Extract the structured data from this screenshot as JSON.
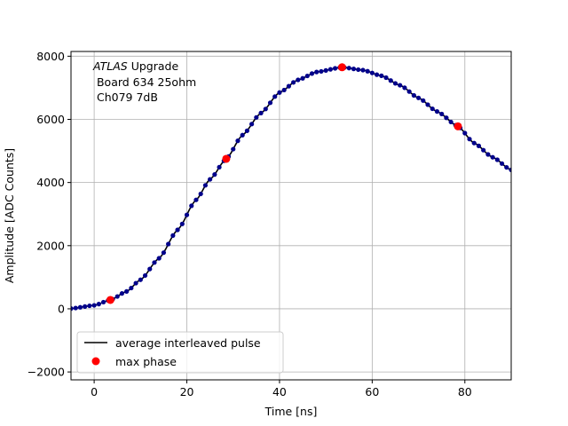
{
  "chart_data": {
    "type": "line",
    "xlabel": "Time [ns]",
    "ylabel": "Amplitude [ADC Counts]",
    "xlim": [
      -5,
      90
    ],
    "ylim": [
      -2250,
      8150
    ],
    "xticks": [
      "0",
      "20",
      "40",
      "60",
      "80"
    ],
    "xtick_values": [
      0,
      20,
      40,
      60,
      80
    ],
    "yticks": [
      "−2000",
      "0",
      "2000",
      "4000",
      "6000",
      "8000"
    ],
    "ytick_values": [
      -2000,
      0,
      2000,
      4000,
      6000,
      8000
    ],
    "grid": true,
    "legend_position": "lower-left",
    "annotation": {
      "experiment": "ATLAS",
      "experiment_suffix": " Upgrade",
      "line2": " Board 634 25ohm",
      "line3": " Ch079 7dB"
    },
    "series": [
      {
        "name": "average interleaved pulse",
        "style": "line",
        "color": "#000000",
        "x": [
          -5,
          0,
          3.5,
          7,
          10,
          14,
          18,
          22,
          25,
          28.5,
          32,
          36,
          40,
          44,
          48,
          53.5,
          58,
          62,
          66,
          70,
          74,
          78.5,
          82,
          86,
          90
        ],
        "y": [
          10,
          110,
          280,
          550,
          920,
          1600,
          2500,
          3450,
          4100,
          4750,
          5500,
          6200,
          6850,
          7250,
          7500,
          7650,
          7560,
          7380,
          7080,
          6680,
          6250,
          5780,
          5250,
          4800,
          4400
        ]
      },
      {
        "name": "samples",
        "style": "dots",
        "color": "#00008b",
        "x": [
          -5,
          0,
          3.5,
          7,
          10,
          14,
          18,
          22,
          25,
          28.5,
          32,
          36,
          40,
          44,
          48,
          53.5,
          58,
          62,
          66,
          70,
          74,
          78.5,
          82,
          86,
          90
        ],
        "y": [
          10,
          110,
          280,
          550,
          920,
          1600,
          2500,
          3450,
          4100,
          4750,
          5500,
          6200,
          6850,
          7250,
          7500,
          7650,
          7560,
          7380,
          7080,
          6680,
          6250,
          5780,
          5250,
          4800,
          4400
        ]
      },
      {
        "name": "max phase",
        "style": "markers",
        "color": "#ff0000",
        "x": [
          3.5,
          28.5,
          53.5,
          78.5
        ],
        "y": [
          280,
          4750,
          7650,
          5780
        ]
      }
    ]
  }
}
